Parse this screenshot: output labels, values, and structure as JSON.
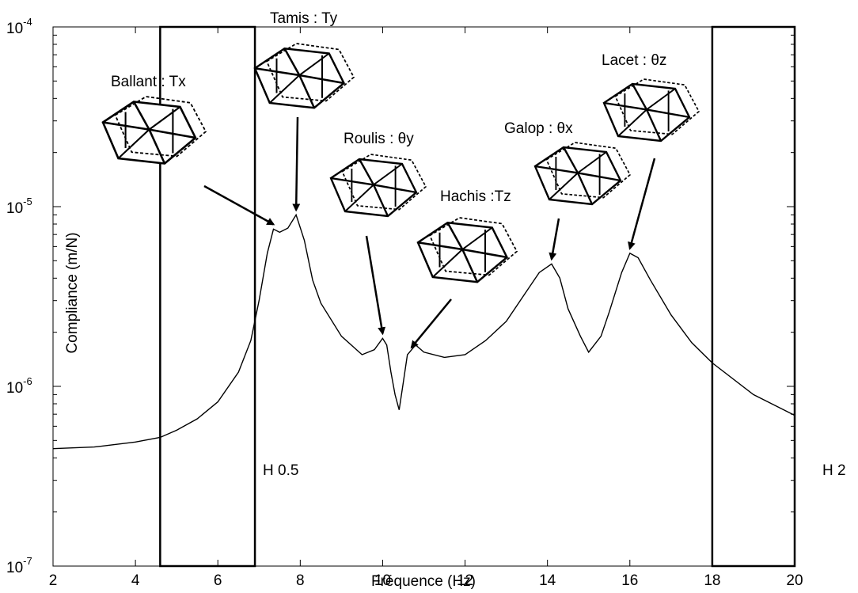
{
  "chart_data": {
    "type": "line",
    "xlabel": "Fréquence (Hz)",
    "ylabel": "Compliance (m/N)",
    "xlim": [
      2,
      20
    ],
    "ylim": [
      1e-07,
      0.0001
    ],
    "yscale": "log",
    "grid": false,
    "x_ticks": [
      "2",
      "4",
      "6",
      "8",
      "10",
      "12",
      "14",
      "16",
      "18",
      "20"
    ],
    "y_ticks": [
      {
        "base": "10",
        "exp": "-7"
      },
      {
        "base": "10",
        "exp": "-6"
      },
      {
        "base": "10",
        "exp": "-5"
      },
      {
        "base": "10",
        "exp": "-4"
      }
    ],
    "series": [
      {
        "x": [
          2,
          3,
          4,
          4.6,
          5,
          5.5,
          6,
          6.5,
          6.8,
          7,
          7.2,
          7.35,
          7.5,
          7.7,
          7.9,
          8.1,
          8.3,
          8.5,
          9,
          9.5,
          9.8,
          10,
          10.1,
          10.2,
          10.3,
          10.4,
          10.5,
          10.6,
          10.8,
          11,
          11.5,
          12,
          12.5,
          13,
          13.5,
          13.8,
          14.1,
          14.3,
          14.5,
          14.8,
          15,
          15.3,
          15.5,
          15.8,
          16,
          16.2,
          16.5,
          17,
          17.5,
          18,
          19,
          20
        ],
        "y": [
          4.5e-07,
          4.6e-07,
          4.9e-07,
          5.2e-07,
          5.7e-07,
          6.6e-07,
          8.2e-07,
          1.2e-06,
          1.8e-06,
          3e-06,
          5.5e-06,
          7.5e-06,
          7.2e-06,
          7.6e-06,
          9e-06,
          6.5e-06,
          3.9e-06,
          2.9e-06,
          1.9e-06,
          1.5e-06,
          1.6e-06,
          1.85e-06,
          1.7e-06,
          1.2e-06,
          9e-07,
          7.4e-07,
          1.05e-06,
          1.5e-06,
          1.7e-06,
          1.55e-06,
          1.45e-06,
          1.5e-06,
          1.8e-06,
          2.3e-06,
          3.4e-06,
          4.3e-06,
          4.8e-06,
          4e-06,
          2.7e-06,
          1.9e-06,
          1.55e-06,
          1.9e-06,
          2.6e-06,
          4.3e-06,
          5.5e-06,
          5.2e-06,
          3.9e-06,
          2.5e-06,
          1.75e-06,
          1.35e-06,
          9e-07,
          6.9e-07
        ]
      }
    ],
    "bands": [
      {
        "x0": 4.6,
        "x1": 6.9,
        "label": "H 0.5"
      },
      {
        "x0": 18.0,
        "x1": 20.0,
        "label": "H 2"
      }
    ],
    "annotations": [
      {
        "text": "Ballant : Tx",
        "target_x": 7.35,
        "target_y": 7.5e-06
      },
      {
        "text": "Tamis : Ty",
        "target_x": 7.9,
        "target_y": 9e-06
      },
      {
        "text": "Roulis : θy",
        "target_x": 10.0,
        "target_y": 1.85e-06
      },
      {
        "text": "Hachis :Tz",
        "target_x": 10.7,
        "target_y": 1.55e-06
      },
      {
        "text": "Galop : θx",
        "target_x": 14.1,
        "target_y": 4.8e-06
      },
      {
        "text": "Lacet : θz",
        "target_x": 16.0,
        "target_y": 5.5e-06
      }
    ]
  }
}
